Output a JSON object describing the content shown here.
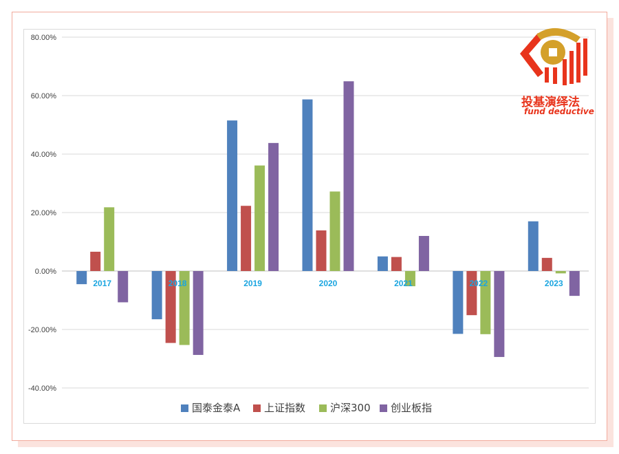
{
  "logo": {
    "cn_text": "投基演绎法",
    "en_text": "fund deductive"
  },
  "colors": {
    "series": [
      "#4f81bd",
      "#c0504d",
      "#9bbb59",
      "#8064a2"
    ],
    "year_label": "#1aa5e0",
    "logo": "#e8341c",
    "gold": "#d4a02a"
  },
  "chart_data": {
    "type": "bar",
    "categories": [
      "2017",
      "2018",
      "2019",
      "2020",
      "2021",
      "2022",
      "2023"
    ],
    "series": [
      {
        "name": "国泰金泰A",
        "values": [
          -4.5,
          -16.5,
          51.5,
          58.7,
          5.0,
          -21.5,
          17.0
        ]
      },
      {
        "name": "上证指数",
        "values": [
          6.6,
          -24.6,
          22.3,
          13.9,
          4.8,
          -15.1,
          4.5
        ]
      },
      {
        "name": "沪深300",
        "values": [
          21.8,
          -25.3,
          36.1,
          27.2,
          -5.2,
          -21.6,
          -0.8
        ]
      },
      {
        "name": "创业板指",
        "values": [
          -10.7,
          -28.7,
          43.8,
          64.9,
          12.0,
          -29.4,
          -8.5
        ]
      }
    ],
    "ylim": [
      -40,
      80
    ],
    "yticks": [
      "-40.00%",
      "-20.00%",
      "0.00%",
      "20.00%",
      "40.00%",
      "60.00%",
      "80.00%"
    ],
    "ytick_values": [
      -40,
      -20,
      0,
      20,
      40,
      60,
      80
    ],
    "grid": true,
    "legend_position": "bottom",
    "title": "",
    "xlabel": "",
    "ylabel": ""
  }
}
